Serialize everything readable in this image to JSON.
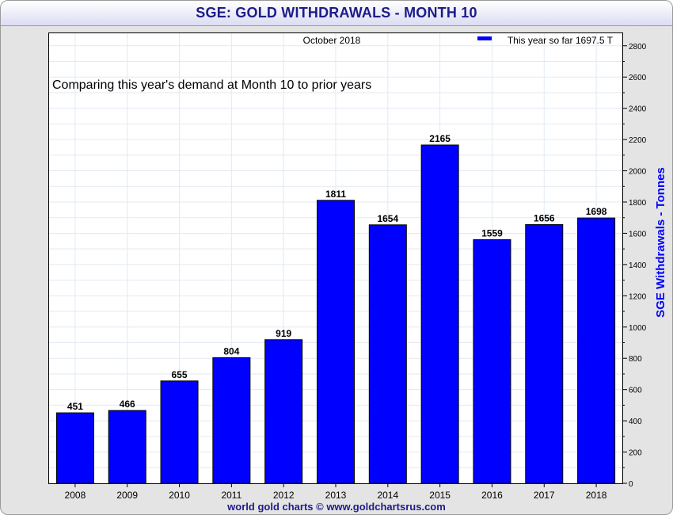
{
  "window": {
    "title": "SGE: GOLD WITHDRAWALS - MONTH 10",
    "footer": "world gold charts © www.goldchartsrus.com"
  },
  "chart_data": {
    "type": "bar",
    "title": "SGE: GOLD WITHDRAWALS - MONTH 10",
    "subtitle": "October 2018",
    "annotation": "Comparing this year's demand at Month 10 to prior years",
    "legend": {
      "label": "This year so far 1697.5 T",
      "position": "top-right",
      "color": "#0000ff"
    },
    "categories": [
      "2008",
      "2009",
      "2010",
      "2011",
      "2012",
      "2013",
      "2014",
      "2015",
      "2016",
      "2017",
      "2018"
    ],
    "values": [
      451,
      466,
      655,
      804,
      919,
      1811,
      1654,
      2165,
      1559,
      1656,
      1698
    ],
    "value_labels": [
      "451",
      "466",
      "655",
      "804",
      "919",
      "1811",
      "1654",
      "2165",
      "1559",
      "1656",
      "1698"
    ],
    "ylabel": "SGE Withdrawals - Tonnes",
    "xlabel": "",
    "ylim": [
      0,
      2880
    ],
    "yticks": [
      0,
      200,
      400,
      600,
      800,
      1000,
      1200,
      1400,
      1600,
      1800,
      2000,
      2200,
      2400,
      2600,
      2800
    ],
    "grid": true,
    "bar_color": "#0000ff",
    "axis_label_color": "#0000ff"
  }
}
